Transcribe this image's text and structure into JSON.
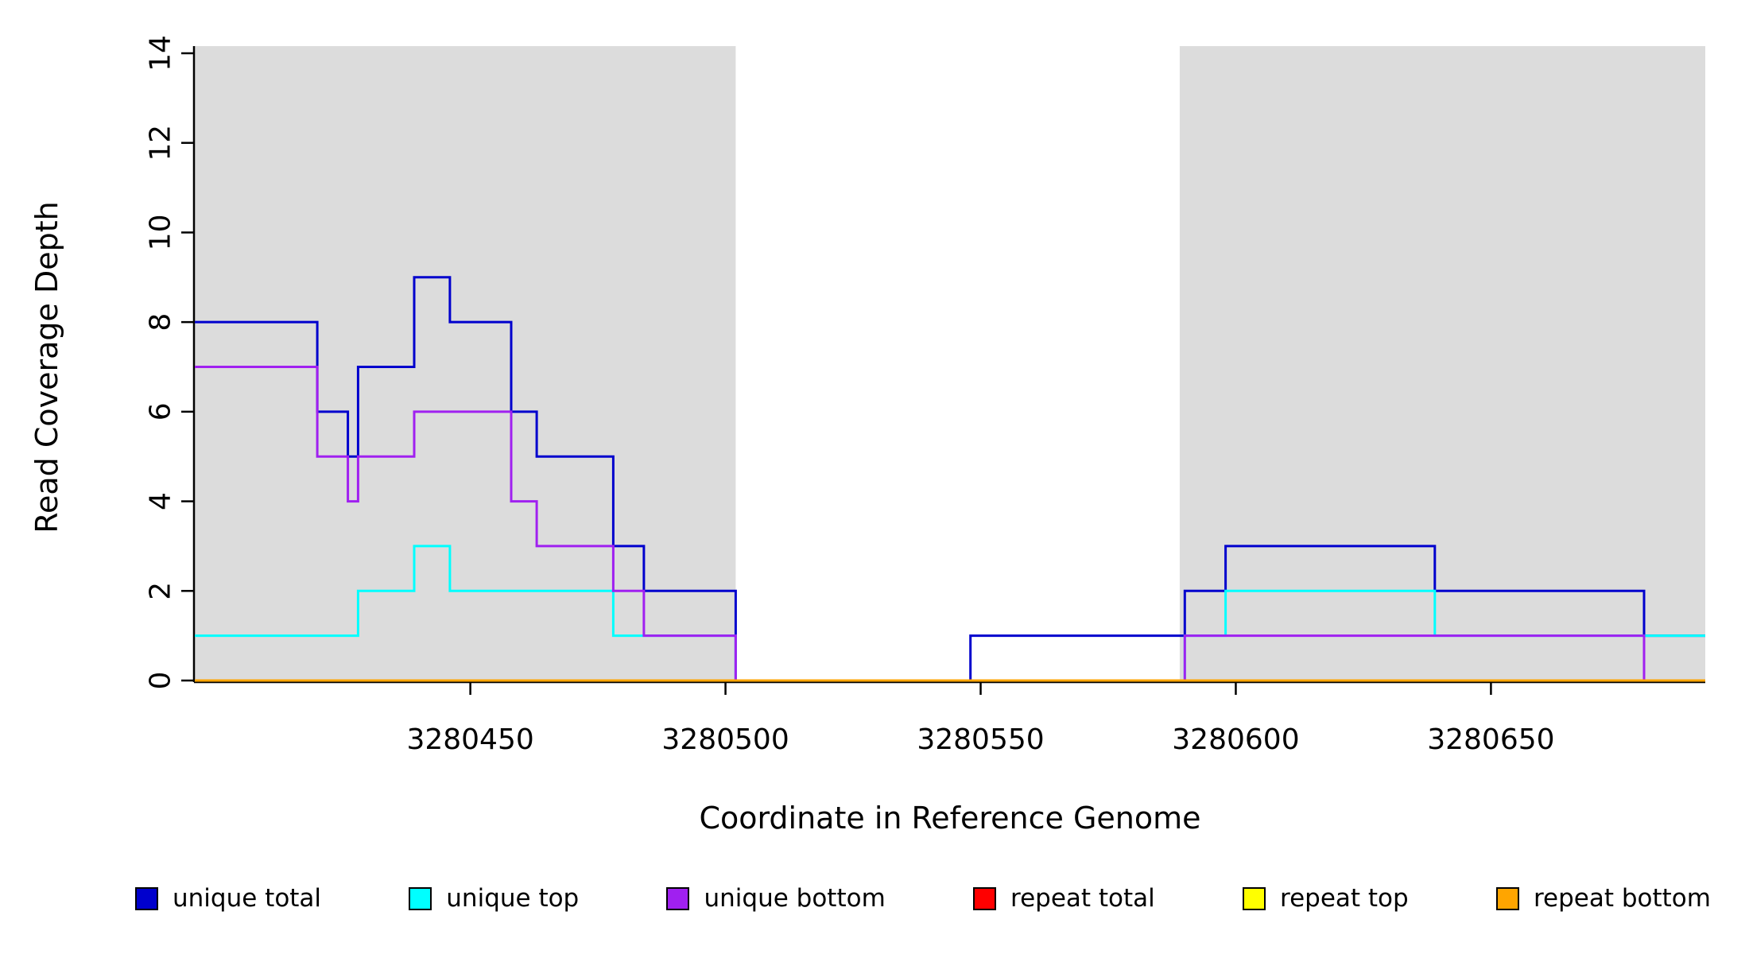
{
  "chart_data": {
    "type": "line",
    "subtype": "step-coverage-plot",
    "title": "",
    "xlabel": "Coordinate in Reference Genome",
    "ylabel": "Read Coverage Depth",
    "xlim": [
      3280396,
      3280692
    ],
    "ylim": [
      0,
      14
    ],
    "grid": false,
    "legend_position": "bottom",
    "xticks": [
      {
        "value": 3280450,
        "label": "3280450"
      },
      {
        "value": 3280500,
        "label": "3280500"
      },
      {
        "value": 3280550,
        "label": "3280550"
      },
      {
        "value": 3280600,
        "label": "3280600"
      },
      {
        "value": 3280650,
        "label": "3280650"
      }
    ],
    "yticks": [
      {
        "value": 0,
        "label": "0"
      },
      {
        "value": 2,
        "label": "2"
      },
      {
        "value": 4,
        "label": "4"
      },
      {
        "value": 6,
        "label": "6"
      },
      {
        "value": 8,
        "label": "8"
      },
      {
        "value": 10,
        "label": "10"
      },
      {
        "value": 12,
        "label": "12"
      },
      {
        "value": 14,
        "label": "14"
      }
    ],
    "shade_color": "#DCDCDC",
    "axis_color": "#000000",
    "shaded_regions": [
      {
        "x0": 3280396,
        "x1": 3280502
      },
      {
        "x0": 3280589,
        "x1": 3280692
      }
    ],
    "series": [
      {
        "name": "unique-total",
        "label": "unique total",
        "color": "#0000CD",
        "steps": [
          [
            3280396,
            8
          ],
          [
            3280420,
            6
          ],
          [
            3280426,
            5
          ],
          [
            3280428,
            7
          ],
          [
            3280439,
            9
          ],
          [
            3280446,
            8
          ],
          [
            3280458,
            6
          ],
          [
            3280463,
            5
          ],
          [
            3280478,
            3
          ],
          [
            3280484,
            2
          ],
          [
            3280502,
            0
          ],
          [
            3280548,
            1
          ],
          [
            3280590,
            2
          ],
          [
            3280598,
            3
          ],
          [
            3280639,
            2
          ],
          [
            3280680,
            1
          ]
        ]
      },
      {
        "name": "unique-top",
        "label": "unique top",
        "color": "#00FFFF",
        "steps": [
          [
            3280396,
            1
          ],
          [
            3280428,
            2
          ],
          [
            3280439,
            3
          ],
          [
            3280446,
            2
          ],
          [
            3280478,
            1
          ],
          [
            3280502,
            0
          ],
          [
            3280590,
            1
          ],
          [
            3280598,
            2
          ],
          [
            3280639,
            1
          ]
        ]
      },
      {
        "name": "unique-bottom",
        "label": "unique bottom",
        "color": "#A020F0",
        "steps": [
          [
            3280396,
            7
          ],
          [
            3280420,
            5
          ],
          [
            3280426,
            4
          ],
          [
            3280428,
            5
          ],
          [
            3280439,
            6
          ],
          [
            3280458,
            4
          ],
          [
            3280463,
            3
          ],
          [
            3280478,
            2
          ],
          [
            3280484,
            1
          ],
          [
            3280502,
            0
          ],
          [
            3280590,
            1
          ],
          [
            3280680,
            0
          ]
        ]
      },
      {
        "name": "repeat-total",
        "label": "repeat total",
        "color": "#FF0000",
        "steps": [
          [
            3280396,
            0
          ]
        ]
      },
      {
        "name": "repeat-top",
        "label": "repeat top",
        "color": "#FFFF00",
        "steps": [
          [
            3280396,
            0
          ]
        ]
      },
      {
        "name": "repeat-bottom",
        "label": "repeat bottom",
        "color": "#FFA500",
        "steps": [
          [
            3280396,
            0
          ]
        ]
      }
    ]
  }
}
